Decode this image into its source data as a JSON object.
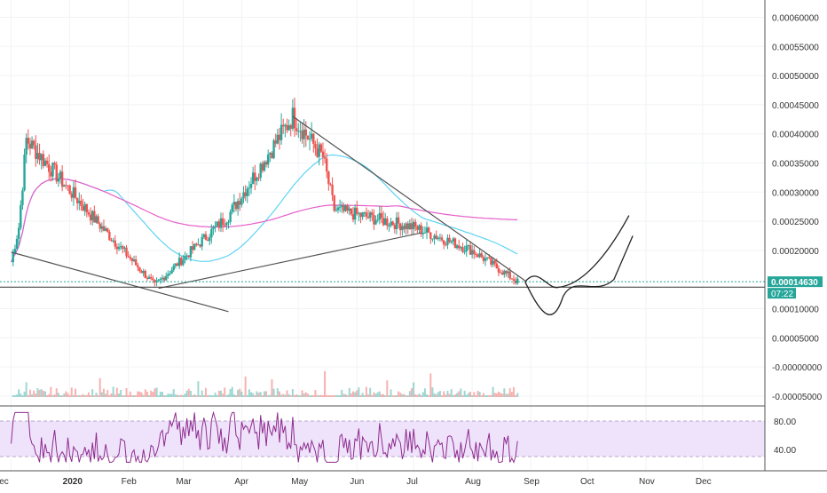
{
  "colors": {
    "up": "#26a69a",
    "down": "#ef5350",
    "ma_long": "#e75ec9",
    "ma_short": "#5fd3f3",
    "trendline": "#555555",
    "projection": "#222222",
    "rsi_line": "#8e2b8e",
    "rsi_band": "#efe3fb",
    "price_line": "#26a69a",
    "support": "#333333",
    "axis_text": "#333333",
    "grid": "#f2f3f5",
    "pane_separator": "#555555"
  },
  "price_axis": {
    "ticks": [
      "0.00060000",
      "0.00055000",
      "0.00050000",
      "0.00045000",
      "0.00040000",
      "0.00035000",
      "0.00030000",
      "0.00025000",
      "0.00020000",
      "0.00010000"
    ],
    "tick_values": [
      0.0006,
      0.00055,
      0.0005,
      0.00045,
      0.0004,
      0.00035,
      0.0003,
      0.00025,
      0.0002,
      0.0001
    ],
    "current_price_label": "0.00014630",
    "countdown_label": "07:22"
  },
  "volume_axis": {
    "ticks": [
      "0.00005000",
      "-0.00000000",
      "-0.00005000"
    ],
    "tick_values": [
      5e-05,
      0,
      -5e-05
    ]
  },
  "rsi_axis": {
    "ticks": [
      "80.00",
      "40.00"
    ],
    "tick_values": [
      80,
      40
    ],
    "band": [
      30,
      80
    ]
  },
  "time_axis": {
    "labels": [
      "Dec",
      "2020",
      "Feb",
      "Mar",
      "Apr",
      "May",
      "Jun",
      "Jul",
      "Aug",
      "Sep",
      "Oct",
      "Nov",
      "Dec"
    ]
  },
  "chart_data": {
    "type": "candlestick",
    "title": "",
    "xlabel": "",
    "ylabel": "",
    "price_range": [
      6e-05,
      0.00064
    ],
    "x_range_days": [
      -5,
      398
    ],
    "key_points": [
      {
        "date": "2019-12-09",
        "close": 0.00039
      },
      {
        "date": "2020-01-15",
        "close": 0.00025
      },
      {
        "date": "2020-02-15",
        "close": 0.00014
      },
      {
        "date": "2020-03-25",
        "close": 0.00026
      },
      {
        "date": "2020-04-28",
        "close": 0.00043
      },
      {
        "date": "2020-05-14",
        "close": 0.00036
      },
      {
        "date": "2020-05-20",
        "close": 0.00027
      },
      {
        "date": "2020-07-01",
        "close": 0.00024
      },
      {
        "date": "2020-08-01",
        "close": 0.0002
      },
      {
        "date": "2020-08-25",
        "close": 0.000146
      }
    ],
    "trendlines": [
      {
        "from": {
          "date": "2019-12-01",
          "price": 0.000197
        },
        "to": {
          "date": "2020-03-25",
          "price": 9.5e-05
        }
      },
      {
        "from": {
          "date": "2020-02-17",
          "price": 0.000135
        },
        "to": {
          "date": "2020-07-05",
          "price": 0.00023
        }
      },
      {
        "from": {
          "date": "2020-04-28",
          "price": 0.00043
        },
        "to": {
          "date": "2020-08-29",
          "price": 0.000148
        }
      }
    ],
    "support_level": 0.000137,
    "rsi_range": [
      22,
      92
    ]
  }
}
